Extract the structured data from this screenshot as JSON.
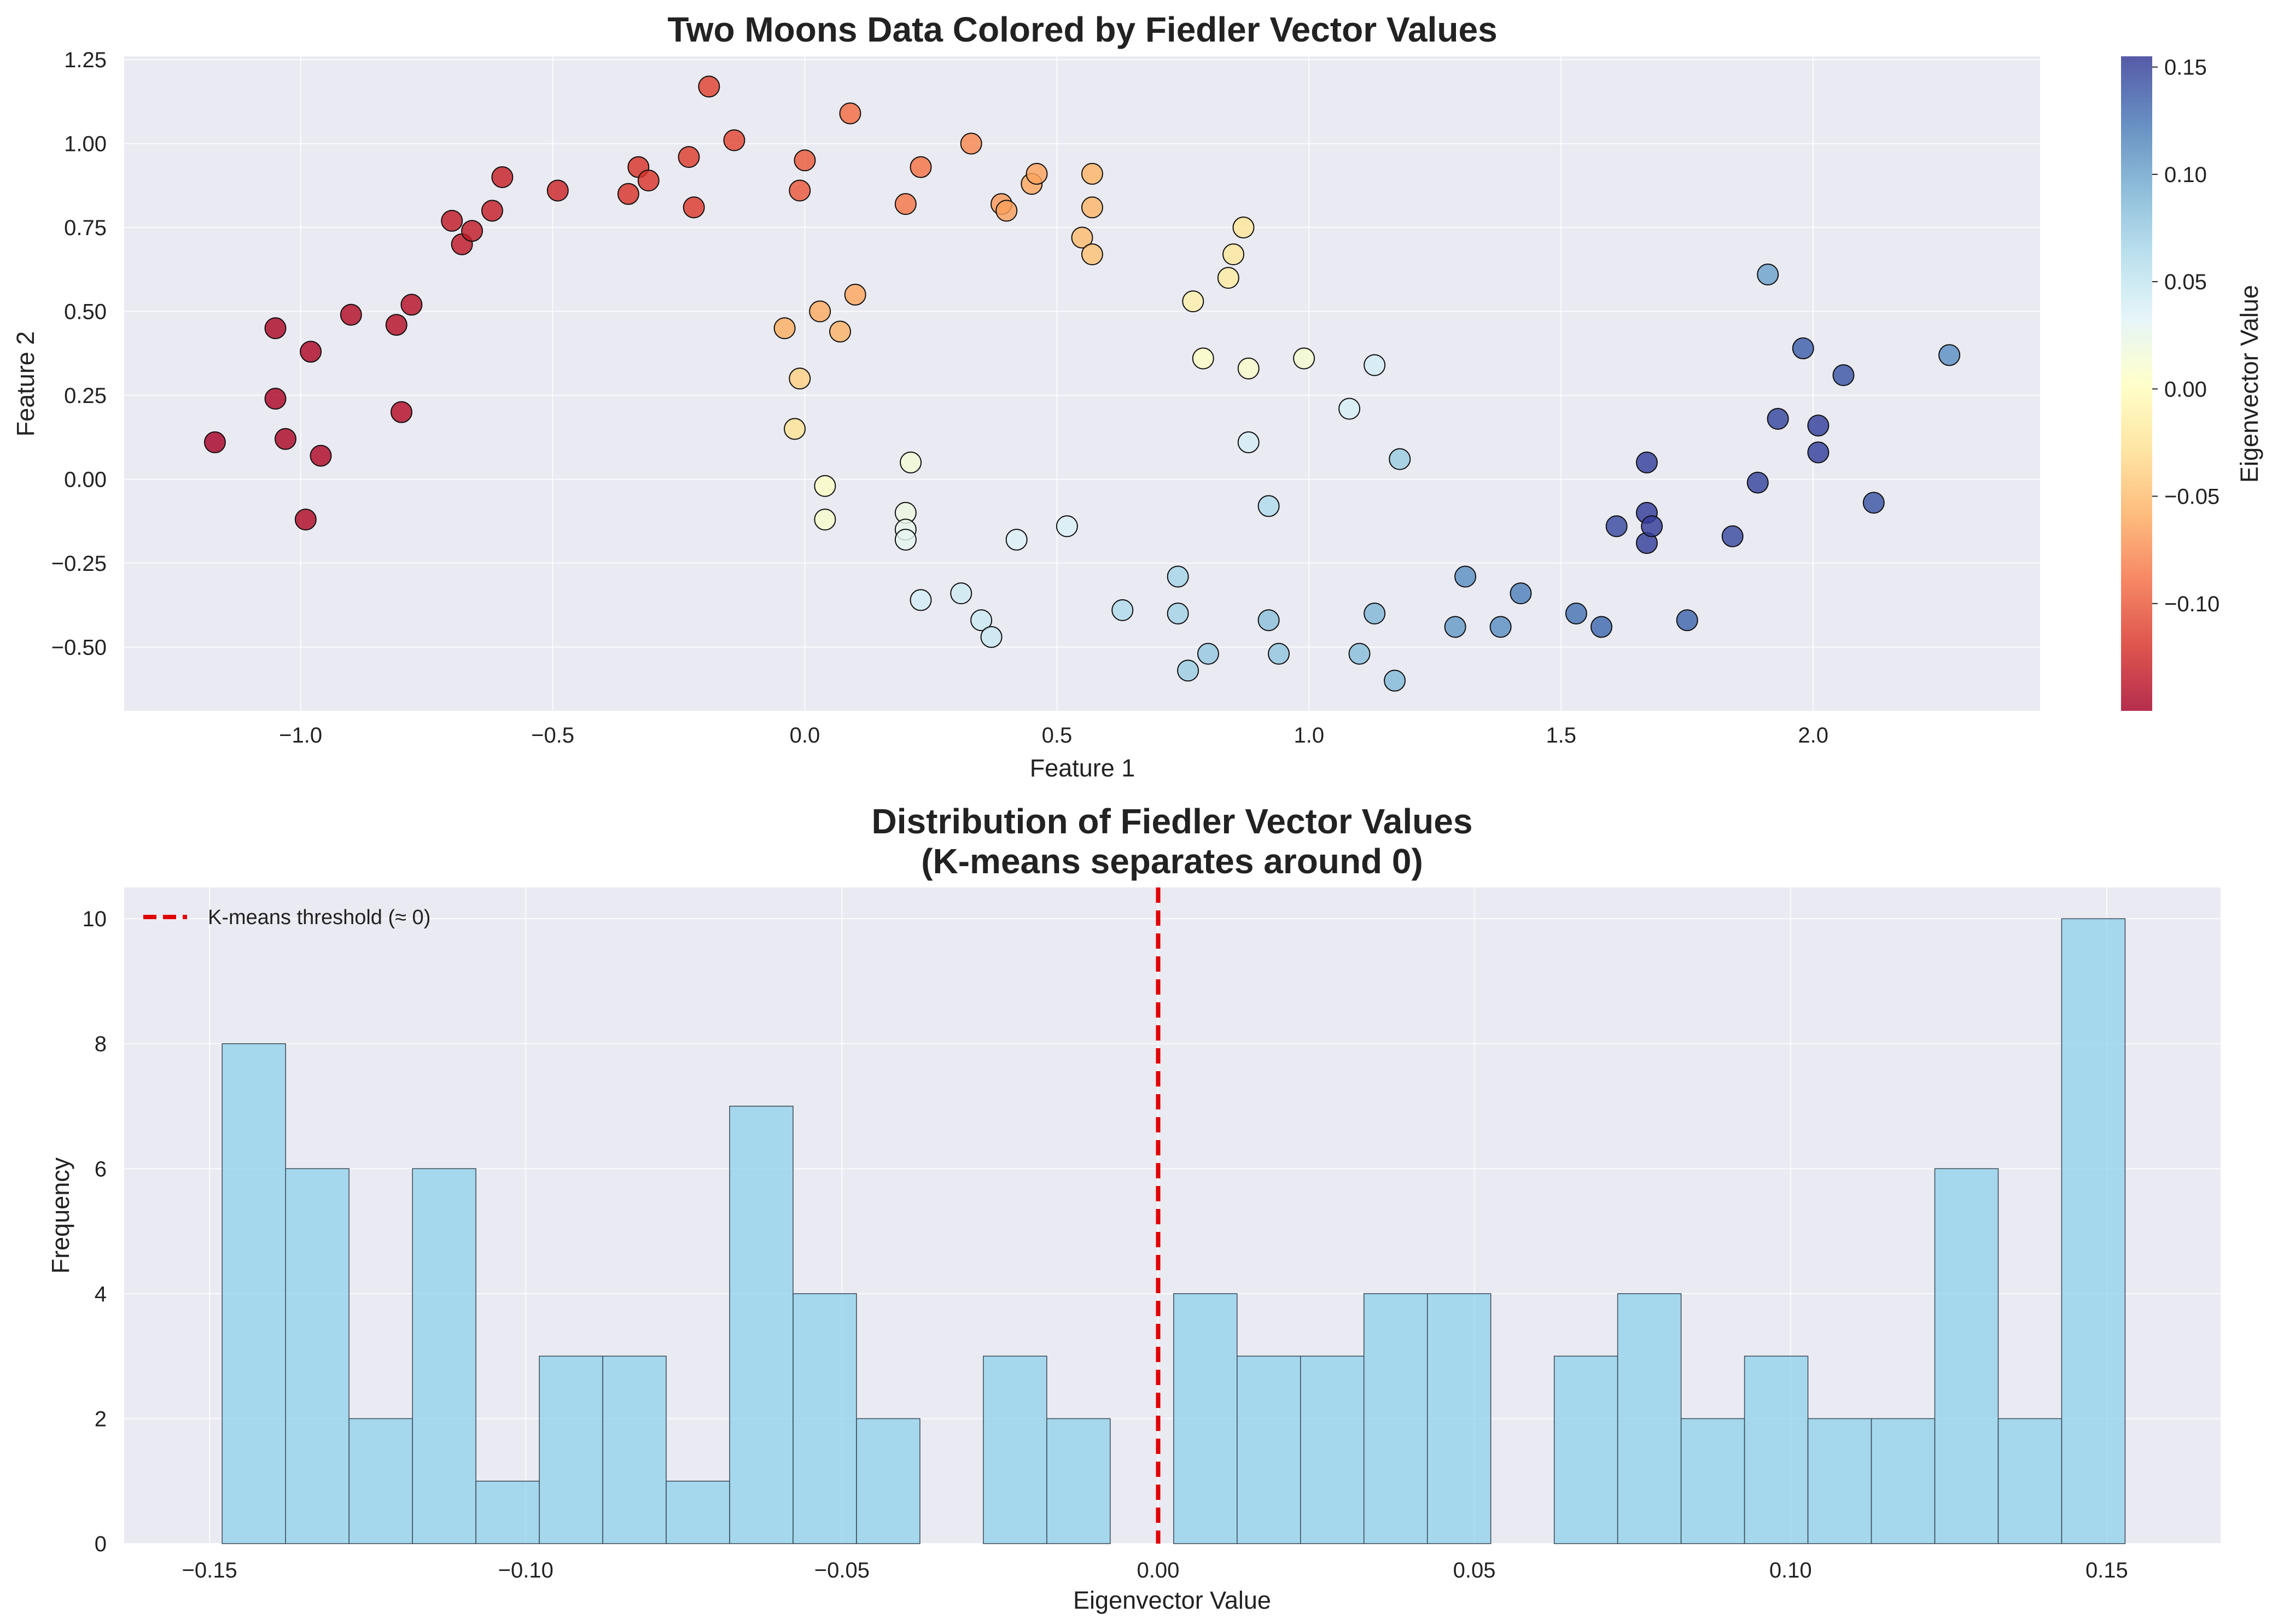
{
  "colors": {
    "background": "#eaeaf2",
    "hist_bar": "#87ceeb",
    "threshold": "#e00000",
    "colormap": [
      "#a50026",
      "#d73027",
      "#f46d43",
      "#fdae61",
      "#fee090",
      "#ffffbf",
      "#e0f3f8",
      "#abd9e9",
      "#74add1",
      "#4575b4",
      "#313695"
    ]
  },
  "chart_data": [
    {
      "type": "scatter",
      "title": "Two Moons Data Colored by Fiedler Vector Values",
      "xlabel": "Feature 1",
      "ylabel": "Feature 2",
      "xlim": [
        -1.35,
        2.45
      ],
      "ylim": [
        -0.69,
        1.26
      ],
      "xticks": [
        -1.0,
        -0.5,
        0.0,
        0.5,
        1.0,
        1.5,
        2.0
      ],
      "xtick_labels": [
        "−1.0",
        "−0.5",
        "0.0",
        "0.5",
        "1.0",
        "1.5",
        "2.0"
      ],
      "yticks": [
        -0.5,
        -0.25,
        0.0,
        0.25,
        0.5,
        0.75,
        1.0,
        1.25
      ],
      "ytick_labels": [
        "−0.50",
        "−0.25",
        "0.00",
        "0.25",
        "0.50",
        "0.75",
        "1.00",
        "1.25"
      ],
      "grid": true,
      "colorbar": {
        "label": "Eigenvector Value",
        "range": [
          -0.15,
          0.155
        ],
        "ticks": [
          -0.1,
          -0.05,
          0.0,
          0.05,
          0.1,
          0.15
        ],
        "tick_labels": [
          "−0.10",
          "−0.05",
          "0.00",
          "0.05",
          "0.10",
          "0.15"
        ]
      },
      "points": [
        {
          "x": -1.17,
          "y": 0.11,
          "c": -0.148
        },
        {
          "x": -1.05,
          "y": 0.45,
          "c": -0.145
        },
        {
          "x": -1.05,
          "y": 0.24,
          "c": -0.146
        },
        {
          "x": -1.03,
          "y": 0.12,
          "c": -0.145
        },
        {
          "x": -0.99,
          "y": -0.12,
          "c": -0.143
        },
        {
          "x": -0.98,
          "y": 0.38,
          "c": -0.144
        },
        {
          "x": -0.96,
          "y": 0.07,
          "c": -0.144
        },
        {
          "x": -0.9,
          "y": 0.49,
          "c": -0.142
        },
        {
          "x": -0.81,
          "y": 0.46,
          "c": -0.14
        },
        {
          "x": -0.8,
          "y": 0.2,
          "c": -0.141
        },
        {
          "x": -0.78,
          "y": 0.52,
          "c": -0.139
        },
        {
          "x": -0.7,
          "y": 0.77,
          "c": -0.133
        },
        {
          "x": -0.68,
          "y": 0.7,
          "c": -0.134
        },
        {
          "x": -0.66,
          "y": 0.74,
          "c": -0.133
        },
        {
          "x": -0.62,
          "y": 0.8,
          "c": -0.131
        },
        {
          "x": -0.6,
          "y": 0.9,
          "c": -0.129
        },
        {
          "x": -0.49,
          "y": 0.86,
          "c": -0.126
        },
        {
          "x": -0.35,
          "y": 0.85,
          "c": -0.118
        },
        {
          "x": -0.33,
          "y": 0.93,
          "c": -0.118
        },
        {
          "x": -0.31,
          "y": 0.89,
          "c": -0.117
        },
        {
          "x": -0.23,
          "y": 0.96,
          "c": -0.113
        },
        {
          "x": -0.22,
          "y": 0.81,
          "c": -0.114
        },
        {
          "x": -0.19,
          "y": 1.17,
          "c": -0.111
        },
        {
          "x": -0.14,
          "y": 1.01,
          "c": -0.108
        },
        {
          "x": -0.01,
          "y": 0.86,
          "c": -0.1
        },
        {
          "x": 0.0,
          "y": 0.95,
          "c": -0.099
        },
        {
          "x": 0.09,
          "y": 1.09,
          "c": -0.09
        },
        {
          "x": 0.2,
          "y": 0.82,
          "c": -0.085
        },
        {
          "x": 0.23,
          "y": 0.93,
          "c": -0.086
        },
        {
          "x": 0.33,
          "y": 1.0,
          "c": -0.076
        },
        {
          "x": 0.39,
          "y": 0.82,
          "c": -0.068
        },
        {
          "x": 0.4,
          "y": 0.8,
          "c": -0.065
        },
        {
          "x": 0.45,
          "y": 0.88,
          "c": -0.062
        },
        {
          "x": 0.46,
          "y": 0.91,
          "c": -0.063
        },
        {
          "x": 0.57,
          "y": 0.91,
          "c": -0.055
        },
        {
          "x": 0.57,
          "y": 0.81,
          "c": -0.053
        },
        {
          "x": 0.55,
          "y": 0.72,
          "c": -0.05
        },
        {
          "x": 0.57,
          "y": 0.67,
          "c": -0.046
        },
        {
          "x": -0.04,
          "y": 0.45,
          "c": -0.058
        },
        {
          "x": 0.03,
          "y": 0.5,
          "c": -0.06
        },
        {
          "x": 0.1,
          "y": 0.55,
          "c": -0.062
        },
        {
          "x": 0.07,
          "y": 0.44,
          "c": -0.056
        },
        {
          "x": -0.01,
          "y": 0.3,
          "c": -0.037
        },
        {
          "x": -0.02,
          "y": 0.15,
          "c": -0.025
        },
        {
          "x": 0.04,
          "y": -0.02,
          "c": 0.006
        },
        {
          "x": 0.04,
          "y": -0.12,
          "c": 0.01
        },
        {
          "x": 0.21,
          "y": 0.05,
          "c": 0.014
        },
        {
          "x": 0.2,
          "y": -0.1,
          "c": 0.02
        },
        {
          "x": 0.2,
          "y": -0.15,
          "c": 0.025
        },
        {
          "x": 0.2,
          "y": -0.18,
          "c": 0.028
        },
        {
          "x": 0.23,
          "y": -0.36,
          "c": 0.04
        },
        {
          "x": 0.31,
          "y": -0.34,
          "c": 0.043
        },
        {
          "x": 0.35,
          "y": -0.42,
          "c": 0.045
        },
        {
          "x": 0.37,
          "y": -0.47,
          "c": 0.046
        },
        {
          "x": 0.42,
          "y": -0.18,
          "c": 0.035
        },
        {
          "x": 0.52,
          "y": -0.14,
          "c": 0.036
        },
        {
          "x": 0.63,
          "y": -0.39,
          "c": 0.06
        },
        {
          "x": 0.74,
          "y": -0.29,
          "c": 0.066
        },
        {
          "x": 0.74,
          "y": -0.4,
          "c": 0.068
        },
        {
          "x": 0.76,
          "y": -0.57,
          "c": 0.072
        },
        {
          "x": 0.8,
          "y": -0.52,
          "c": 0.075
        },
        {
          "x": 0.77,
          "y": 0.53,
          "c": -0.012
        },
        {
          "x": 0.79,
          "y": 0.36,
          "c": 0.005
        },
        {
          "x": 0.84,
          "y": 0.6,
          "c": -0.016
        },
        {
          "x": 0.85,
          "y": 0.67,
          "c": -0.019
        },
        {
          "x": 0.87,
          "y": 0.75,
          "c": -0.022
        },
        {
          "x": 0.88,
          "y": 0.33,
          "c": 0.008
        },
        {
          "x": 0.88,
          "y": 0.11,
          "c": 0.04
        },
        {
          "x": 0.92,
          "y": -0.08,
          "c": 0.06
        },
        {
          "x": 0.92,
          "y": -0.42,
          "c": 0.08
        },
        {
          "x": 0.94,
          "y": -0.52,
          "c": 0.077
        },
        {
          "x": 0.99,
          "y": 0.36,
          "c": 0.012
        },
        {
          "x": 1.08,
          "y": 0.21,
          "c": 0.038
        },
        {
          "x": 1.1,
          "y": -0.52,
          "c": 0.082
        },
        {
          "x": 1.13,
          "y": -0.4,
          "c": 0.087
        },
        {
          "x": 1.13,
          "y": 0.34,
          "c": 0.04
        },
        {
          "x": 1.17,
          "y": -0.6,
          "c": 0.086
        },
        {
          "x": 1.18,
          "y": 0.06,
          "c": 0.072
        },
        {
          "x": 1.29,
          "y": -0.44,
          "c": 0.104
        },
        {
          "x": 1.31,
          "y": -0.29,
          "c": 0.11
        },
        {
          "x": 1.38,
          "y": -0.44,
          "c": 0.11
        },
        {
          "x": 1.42,
          "y": -0.34,
          "c": 0.118
        },
        {
          "x": 1.53,
          "y": -0.4,
          "c": 0.125
        },
        {
          "x": 1.58,
          "y": -0.44,
          "c": 0.13
        },
        {
          "x": 1.61,
          "y": -0.14,
          "c": 0.145
        },
        {
          "x": 1.67,
          "y": 0.05,
          "c": 0.15
        },
        {
          "x": 1.67,
          "y": -0.1,
          "c": 0.152
        },
        {
          "x": 1.67,
          "y": -0.19,
          "c": 0.15
        },
        {
          "x": 1.68,
          "y": -0.14,
          "c": 0.152
        },
        {
          "x": 1.75,
          "y": -0.42,
          "c": 0.132
        },
        {
          "x": 1.84,
          "y": -0.17,
          "c": 0.145
        },
        {
          "x": 1.89,
          "y": -0.01,
          "c": 0.148
        },
        {
          "x": 1.91,
          "y": 0.61,
          "c": 0.1
        },
        {
          "x": 1.93,
          "y": 0.18,
          "c": 0.147
        },
        {
          "x": 1.98,
          "y": 0.39,
          "c": 0.135
        },
        {
          "x": 2.01,
          "y": 0.16,
          "c": 0.15
        },
        {
          "x": 2.01,
          "y": 0.08,
          "c": 0.15
        },
        {
          "x": 2.06,
          "y": 0.31,
          "c": 0.14
        },
        {
          "x": 2.12,
          "y": -0.07,
          "c": 0.14
        },
        {
          "x": 2.27,
          "y": 0.37,
          "c": 0.11
        }
      ]
    },
    {
      "type": "bar",
      "subtype": "histogram",
      "title": "Distribution of Fiedler Vector Values",
      "subtitle": "(K-means separates around 0)",
      "xlabel": "Eigenvector Value",
      "ylabel": "Frequency",
      "xlim": [
        -0.1635,
        0.168
      ],
      "ylim": [
        0,
        10.5
      ],
      "xticks": [
        -0.15,
        -0.1,
        -0.05,
        0.0,
        0.05,
        0.1,
        0.15
      ],
      "xtick_labels": [
        "−0.15",
        "−0.10",
        "−0.05",
        "0.00",
        "0.05",
        "0.10",
        "0.15"
      ],
      "yticks": [
        0,
        2,
        4,
        6,
        8,
        10
      ],
      "ytick_labels": [
        "0",
        "2",
        "4",
        "6",
        "8",
        "10"
      ],
      "grid": true,
      "bin_start": -0.148,
      "bin_width": 0.01003,
      "counts": [
        8,
        6,
        2,
        6,
        1,
        3,
        3,
        1,
        7,
        4,
        2,
        0,
        3,
        2,
        0,
        4,
        3,
        3,
        4,
        4,
        0,
        3,
        4,
        2,
        3,
        2,
        2,
        6,
        2,
        10
      ],
      "threshold": {
        "x": 0.0,
        "label": "K-means threshold (≈ 0)"
      },
      "legend_position": "top-left"
    }
  ]
}
